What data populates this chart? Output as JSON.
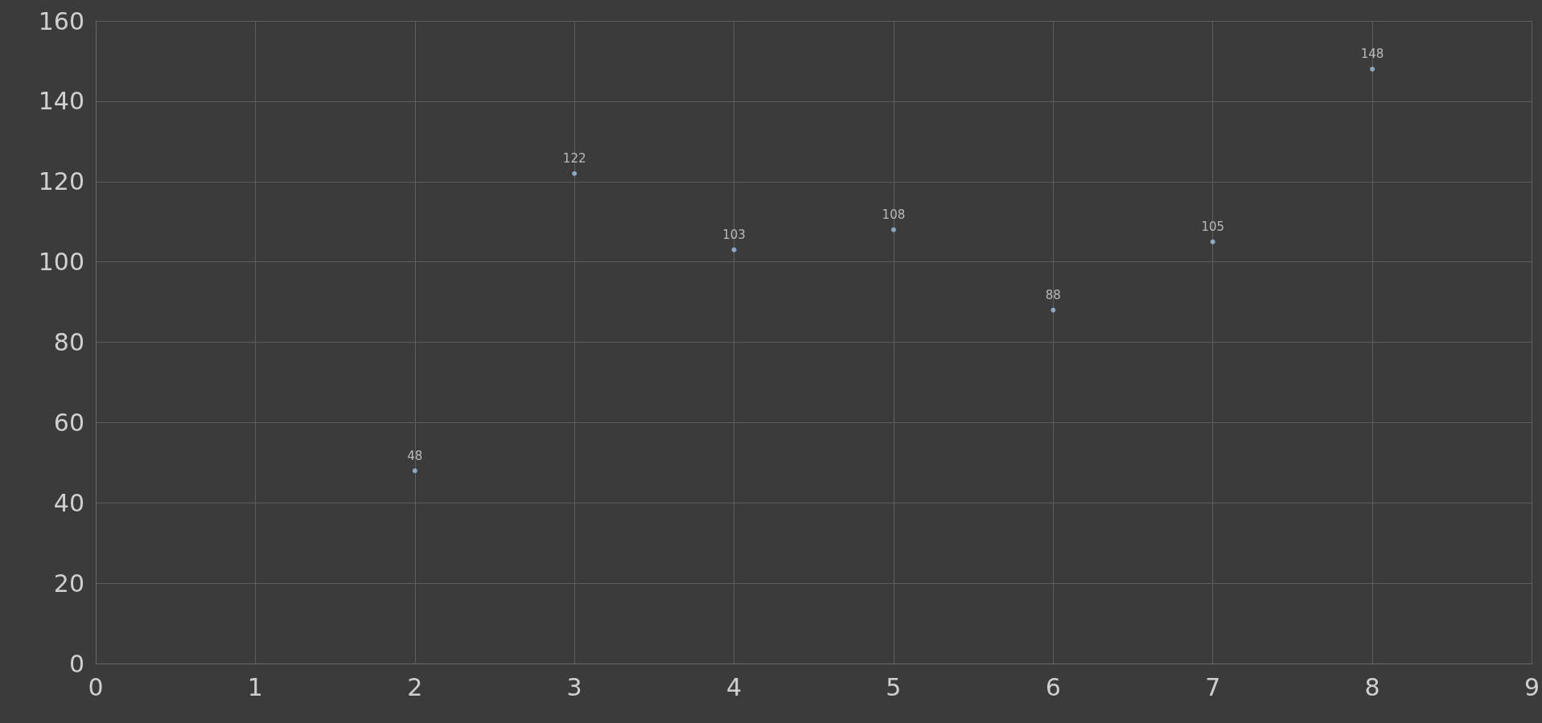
{
  "chart_data": {
    "type": "scatter",
    "x": [
      2,
      3,
      4,
      5,
      6,
      7,
      8
    ],
    "values": [
      48,
      122,
      103,
      108,
      88,
      105,
      148
    ],
    "color": "#9dc3e6",
    "data_labels": true,
    "marker": "circle",
    "grid": true,
    "xlim": [
      0,
      9
    ],
    "xticks": [
      0,
      1,
      2,
      3,
      4,
      5,
      6,
      7,
      8,
      9
    ],
    "ylim": [
      0,
      160
    ],
    "yticks": [
      0,
      20,
      40,
      60,
      80,
      100,
      120,
      140,
      160
    ]
  }
}
